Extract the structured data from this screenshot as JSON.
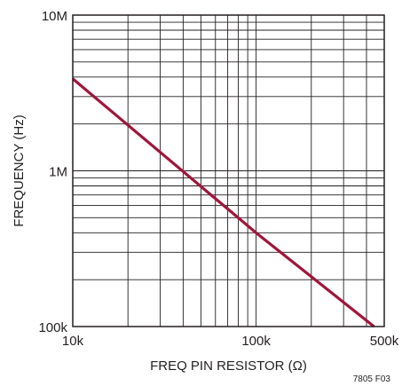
{
  "chart_data": {
    "type": "line",
    "xlabel": "FREQ PIN RESISTOR (Ω)",
    "ylabel": "FREQUENCY (Hz)",
    "figure_id": "7805 F03",
    "x_scale": "log",
    "y_scale": "log",
    "xlim": [
      10000,
      500000
    ],
    "ylim": [
      100000,
      10000000
    ],
    "x_tick_labels": [
      "10k",
      "100k",
      "500k"
    ],
    "y_tick_labels": [
      "100k",
      "1M",
      "10M"
    ],
    "x_tick_values": [
      10000,
      100000,
      500000
    ],
    "y_tick_values": [
      100000,
      1000000,
      10000000
    ],
    "grid": true,
    "colors": {
      "line": "#a0163a",
      "grid": "#231f20"
    },
    "series": [
      {
        "x": [
          10000,
          100000,
          440000
        ],
        "y": [
          3900000,
          400000,
          100000
        ]
      }
    ]
  }
}
